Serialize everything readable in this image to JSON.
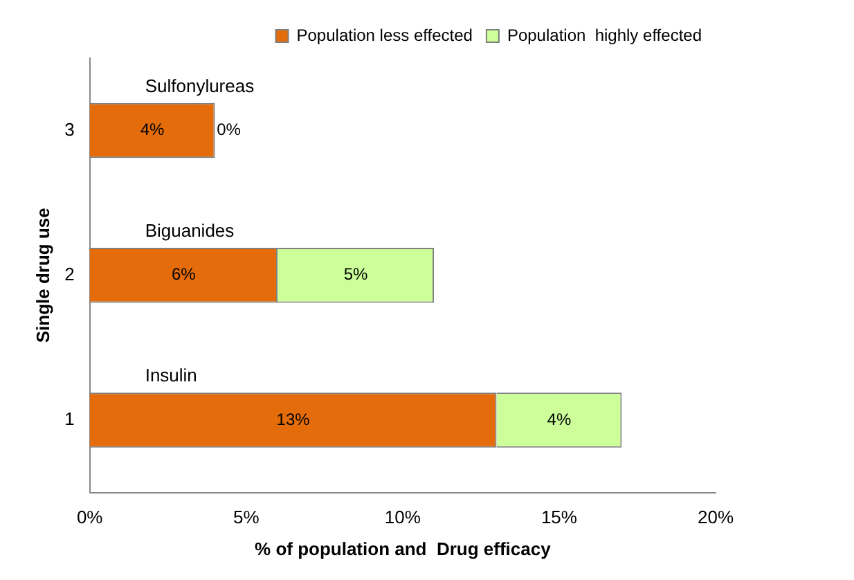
{
  "chart_data": {
    "type": "bar",
    "orientation": "horizontal",
    "stacked": true,
    "categories": [
      "3",
      "2",
      "1"
    ],
    "series": [
      {
        "name": "Population less effected",
        "color": "#e46c0a",
        "values": [
          4,
          6,
          13
        ],
        "value_labels": [
          "4%",
          "6%",
          "13%"
        ]
      },
      {
        "name": "Population  highly effected",
        "color": "#ccff99",
        "values": [
          0,
          5,
          4
        ],
        "value_labels": [
          "0%",
          "5%",
          "4%"
        ]
      }
    ],
    "xlim": [
      0,
      20
    ],
    "xticks": [
      {
        "value": 0,
        "label": "0%"
      },
      {
        "value": 5,
        "label": "5%"
      },
      {
        "value": 10,
        "label": "10%"
      },
      {
        "value": 15,
        "label": "15%"
      },
      {
        "value": 20,
        "label": "20%"
      }
    ],
    "xlabel": "% of population and  Drug efficacy",
    "ylabel": "Single drug use",
    "annotations": [
      "Sulfonylureas",
      "Biguanides",
      "Insulin"
    ],
    "legend": "top right",
    "grid": false
  }
}
